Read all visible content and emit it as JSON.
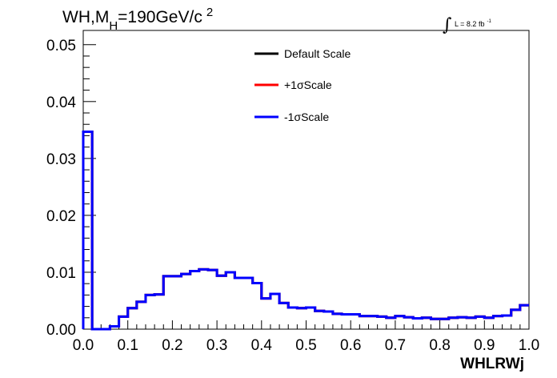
{
  "chart_data": {
    "type": "line",
    "style": "step-histogram",
    "title_parts": {
      "prefix": "WH,M",
      "subscript": "H",
      "main": "=190GeV/c",
      "superscript": "2"
    },
    "lumi": {
      "text": "L = 8.2 fb",
      "superscript": "-1"
    },
    "xlabel": "WHLRWj",
    "ylabel": "",
    "xlim": [
      0.0,
      1.0
    ],
    "ylim": [
      0.0,
      0.0525
    ],
    "x_ticks": [
      "0.0",
      "0.1",
      "0.2",
      "0.3",
      "0.4",
      "0.5",
      "0.6",
      "0.7",
      "0.8",
      "0.9",
      "1.0"
    ],
    "y_ticks": [
      "0.00",
      "0.01",
      "0.02",
      "0.03",
      "0.04",
      "0.05"
    ],
    "legend_position": "top-right",
    "legend": [
      {
        "name": "Default Scale",
        "color": "#000000"
      },
      {
        "name": "+1σScale",
        "color": "#ff0000"
      },
      {
        "name": "-1σScale",
        "color": "#0000ff"
      }
    ],
    "bin_edges": [
      0.0,
      0.02,
      0.04,
      0.06,
      0.08,
      0.1,
      0.12,
      0.14,
      0.16,
      0.18,
      0.2,
      0.22,
      0.24,
      0.26,
      0.28,
      0.3,
      0.32,
      0.34,
      0.36,
      0.38,
      0.4,
      0.42,
      0.44,
      0.46,
      0.48,
      0.5,
      0.52,
      0.54,
      0.56,
      0.58,
      0.6,
      0.62,
      0.64,
      0.66,
      0.68,
      0.7,
      0.72,
      0.74,
      0.76,
      0.78,
      0.8,
      0.82,
      0.84,
      0.86,
      0.88,
      0.9,
      0.92,
      0.94,
      0.96,
      0.98,
      1.0
    ],
    "series": [
      {
        "name": "Default Scale",
        "color": "#000000",
        "values": [
          0.0347,
          0.0,
          0.0,
          0.0005,
          0.0022,
          0.0037,
          0.0048,
          0.006,
          0.0061,
          0.0093,
          0.0093,
          0.0097,
          0.0102,
          0.0105,
          0.0104,
          0.0094,
          0.01,
          0.009,
          0.009,
          0.0081,
          0.0054,
          0.0062,
          0.0046,
          0.0038,
          0.0037,
          0.0038,
          0.0032,
          0.0031,
          0.0027,
          0.0026,
          0.0026,
          0.0023,
          0.0023,
          0.0022,
          0.002,
          0.0023,
          0.0021,
          0.0019,
          0.002,
          0.0018,
          0.0018,
          0.002,
          0.0021,
          0.002,
          0.0022,
          0.002,
          0.0023,
          0.0024,
          0.0034,
          0.0042
        ]
      },
      {
        "name": "+1σScale",
        "color": "#ff0000",
        "values": [
          0.0347,
          0.0,
          0.0,
          0.0005,
          0.0022,
          0.0037,
          0.0048,
          0.006,
          0.0061,
          0.0093,
          0.0093,
          0.0097,
          0.0102,
          0.0105,
          0.0104,
          0.0094,
          0.01,
          0.009,
          0.009,
          0.0081,
          0.0054,
          0.0062,
          0.0046,
          0.0038,
          0.0037,
          0.0038,
          0.0032,
          0.0031,
          0.0027,
          0.0026,
          0.0026,
          0.0023,
          0.0023,
          0.0022,
          0.002,
          0.0023,
          0.0021,
          0.0019,
          0.002,
          0.0018,
          0.0018,
          0.002,
          0.0021,
          0.002,
          0.0022,
          0.002,
          0.0023,
          0.0024,
          0.0034,
          0.0042
        ]
      },
      {
        "name": "-1σScale",
        "color": "#0000ff",
        "values": [
          0.0347,
          0.0,
          0.0,
          0.0005,
          0.0022,
          0.0037,
          0.0048,
          0.006,
          0.0061,
          0.0093,
          0.0093,
          0.0097,
          0.0102,
          0.0105,
          0.0104,
          0.0094,
          0.01,
          0.009,
          0.009,
          0.0081,
          0.0054,
          0.0062,
          0.0046,
          0.0038,
          0.0037,
          0.0038,
          0.0032,
          0.0031,
          0.0027,
          0.0026,
          0.0026,
          0.0023,
          0.0023,
          0.0022,
          0.002,
          0.0023,
          0.0021,
          0.0019,
          0.002,
          0.0018,
          0.0018,
          0.002,
          0.0021,
          0.002,
          0.0022,
          0.002,
          0.0023,
          0.0024,
          0.0034,
          0.0042
        ]
      }
    ]
  }
}
